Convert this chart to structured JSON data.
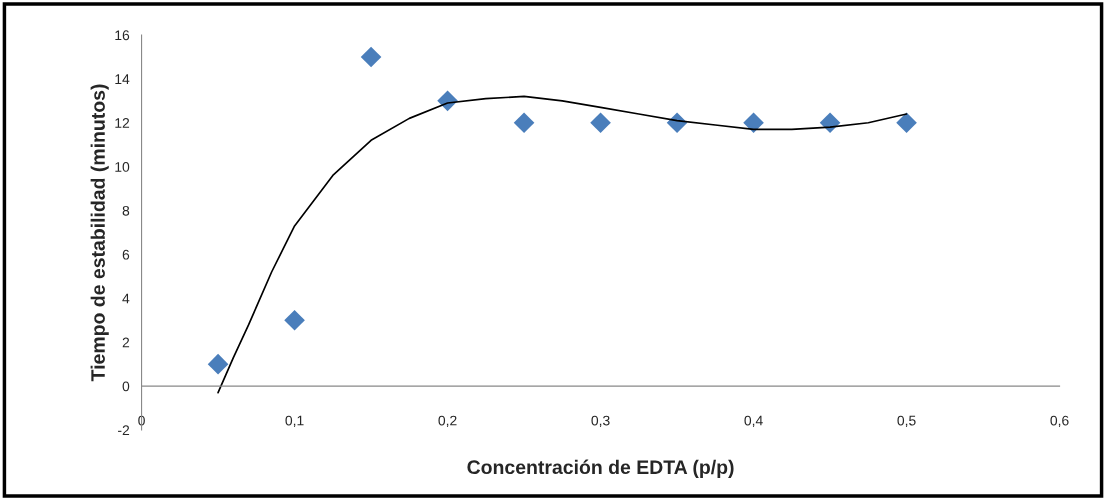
{
  "chart_data": {
    "type": "scatter",
    "xlabel": "Concentración de EDTA (p/p)",
    "ylabel": "Tiempo de estabilidad (minutos)",
    "x": [
      0.05,
      0.1,
      0.15,
      0.2,
      0.25,
      0.3,
      0.35,
      0.4,
      0.45,
      0.5
    ],
    "series": [
      {
        "color": "#4a7ebb",
        "marker": "diamond",
        "values": [
          1,
          3,
          15,
          13,
          12,
          12,
          12,
          12,
          12,
          12
        ]
      },
      {
        "type": "line",
        "color": "#000000",
        "marker": "none",
        "line_style": "solid",
        "x": [
          0.05,
          0.06,
          0.07,
          0.085,
          0.1,
          0.125,
          0.15,
          0.175,
          0.2,
          0.225,
          0.25,
          0.275,
          0.3,
          0.325,
          0.35,
          0.375,
          0.4,
          0.425,
          0.45,
          0.475,
          0.5
        ],
        "values": [
          -0.3,
          1.3,
          2.8,
          5.2,
          7.3,
          9.6,
          11.2,
          12.2,
          12.9,
          13.1,
          13.2,
          13.0,
          12.7,
          12.4,
          12.1,
          11.9,
          11.7,
          11.7,
          11.8,
          12.0,
          12.4
        ]
      }
    ],
    "xlim": [
      0,
      0.6
    ],
    "xticks": [
      0,
      {
        "value": 0.1,
        "label": "0,1"
      },
      {
        "value": 0.2,
        "label": "0,2"
      },
      {
        "value": 0.3,
        "label": "0,3"
      },
      {
        "value": 0.4,
        "label": "0,4"
      },
      {
        "value": 0.5,
        "label": "0,5"
      },
      {
        "value": 0.6,
        "label": "0,6"
      }
    ],
    "ylim": [
      -2,
      16
    ],
    "yticks": [
      -2,
      0,
      2,
      4,
      6,
      8,
      10,
      12,
      14,
      16
    ],
    "grid": false,
    "legend": false
  }
}
